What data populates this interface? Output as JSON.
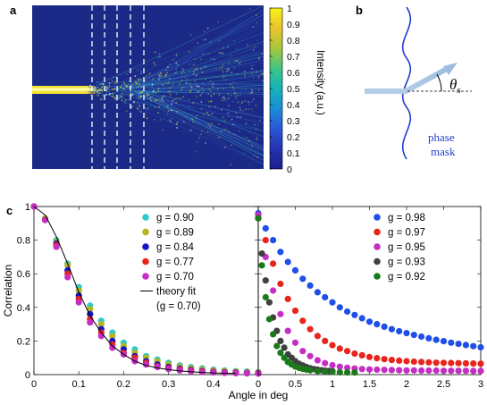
{
  "panels": {
    "a": "a",
    "b": "b",
    "c": "c"
  },
  "panel_a": {
    "colorbar": {
      "label": "Intensity (a.u.)",
      "ticks": [
        "1",
        "0.9",
        "0.8",
        "0.7",
        "0.6",
        "0.5",
        "0.4",
        "0.3",
        "0.2",
        "0.1",
        "0"
      ]
    }
  },
  "panel_b": {
    "theta": "θ",
    "theta_sub": "s",
    "mask_label_1": "phase",
    "mask_label_2": "mask"
  },
  "chart_data": [
    {
      "type": "scatter",
      "ylabel": "Correlation",
      "xlim": [
        0,
        0.5
      ],
      "ylim": [
        0,
        1
      ],
      "xticks": [
        "0",
        "0.1",
        "0.2",
        "0.3",
        "0.4"
      ],
      "yticks": [
        "0",
        "0.2",
        "0.4",
        "0.6",
        "0.8",
        "1"
      ],
      "series": [
        {
          "name": "g = 0.90",
          "color": "#2ec9c9",
          "x": [
            0,
            0.025,
            0.05,
            0.075,
            0.1,
            0.125,
            0.15,
            0.175,
            0.2,
            0.225,
            0.25,
            0.275,
            0.3,
            0.325,
            0.35,
            0.375,
            0.4,
            0.425,
            0.45,
            0.475,
            0.5
          ],
          "y": [
            1.0,
            0.93,
            0.8,
            0.66,
            0.52,
            0.41,
            0.32,
            0.25,
            0.19,
            0.15,
            0.11,
            0.09,
            0.07,
            0.055,
            0.045,
            0.037,
            0.03,
            0.025,
            0.02,
            0.018,
            0.015
          ]
        },
        {
          "name": "g = 0.89",
          "color": "#b5b521",
          "x": [
            0,
            0.025,
            0.05,
            0.075,
            0.1,
            0.125,
            0.15,
            0.175,
            0.2,
            0.225,
            0.25,
            0.275,
            0.3,
            0.325,
            0.35,
            0.375,
            0.4,
            0.425,
            0.45,
            0.475,
            0.5
          ],
          "y": [
            1.0,
            0.93,
            0.79,
            0.65,
            0.5,
            0.39,
            0.3,
            0.23,
            0.17,
            0.13,
            0.1,
            0.08,
            0.06,
            0.048,
            0.038,
            0.03,
            0.025,
            0.02,
            0.017,
            0.014,
            0.012
          ]
        },
        {
          "name": "g = 0.84",
          "color": "#1515c8",
          "x": [
            0,
            0.025,
            0.05,
            0.075,
            0.1,
            0.125,
            0.15,
            0.175,
            0.2,
            0.225,
            0.25,
            0.275,
            0.3,
            0.325,
            0.35,
            0.375,
            0.4,
            0.425,
            0.45,
            0.475,
            0.5
          ],
          "y": [
            1.0,
            0.92,
            0.78,
            0.62,
            0.47,
            0.36,
            0.27,
            0.2,
            0.15,
            0.11,
            0.08,
            0.06,
            0.045,
            0.035,
            0.027,
            0.021,
            0.017,
            0.014,
            0.012,
            0.01,
            0.009
          ]
        },
        {
          "name": "g = 0.77",
          "color": "#e8251c",
          "x": [
            0,
            0.025,
            0.05,
            0.075,
            0.1,
            0.125,
            0.15,
            0.175,
            0.2,
            0.225,
            0.25,
            0.275,
            0.3,
            0.325,
            0.35,
            0.375,
            0.4,
            0.425,
            0.45,
            0.475,
            0.5
          ],
          "y": [
            1.0,
            0.92,
            0.77,
            0.6,
            0.45,
            0.33,
            0.25,
            0.18,
            0.13,
            0.1,
            0.07,
            0.05,
            0.038,
            0.03,
            0.023,
            0.018,
            0.015,
            0.012,
            0.01,
            0.009,
            0.008
          ]
        },
        {
          "name": "g = 0.70",
          "color": "#c42ec4",
          "x": [
            0,
            0.025,
            0.05,
            0.075,
            0.1,
            0.125,
            0.15,
            0.175,
            0.2,
            0.225,
            0.25,
            0.275,
            0.3,
            0.325,
            0.35,
            0.375,
            0.4,
            0.425,
            0.45,
            0.475,
            0.5
          ],
          "y": [
            1.0,
            0.92,
            0.76,
            0.58,
            0.43,
            0.31,
            0.23,
            0.16,
            0.12,
            0.08,
            0.06,
            0.045,
            0.033,
            0.025,
            0.019,
            0.015,
            0.012,
            0.01,
            0.008,
            0.007,
            0.006
          ]
        },
        {
          "name": "theory fit",
          "subname": "(g = 0.70)",
          "color": "#000000",
          "kind": "line",
          "x": [
            0,
            0.025,
            0.05,
            0.075,
            0.1,
            0.125,
            0.15,
            0.175,
            0.2,
            0.225,
            0.25,
            0.275,
            0.3,
            0.325,
            0.35,
            0.375,
            0.4,
            0.425,
            0.45
          ],
          "y": [
            1.0,
            0.95,
            0.82,
            0.66,
            0.49,
            0.35,
            0.25,
            0.17,
            0.12,
            0.08,
            0.055,
            0.04,
            0.03,
            0.022,
            0.017,
            0.013,
            0.01,
            0.008,
            0.007
          ]
        }
      ]
    },
    {
      "type": "scatter",
      "xlabel": "Angle in deg",
      "xlim": [
        0,
        3
      ],
      "ylim": [
        0,
        1
      ],
      "xticks": [
        "0",
        "0.5",
        "1",
        "1.5",
        "2",
        "2.5",
        "3"
      ],
      "series": [
        {
          "name": "g = 0.98",
          "color": "#1f4fe8",
          "x": [
            0,
            0.1,
            0.2,
            0.3,
            0.4,
            0.5,
            0.6,
            0.7,
            0.8,
            0.9,
            1.0,
            1.1,
            1.2,
            1.3,
            1.4,
            1.5,
            1.6,
            1.7,
            1.8,
            1.9,
            2.0,
            2.1,
            2.2,
            2.3,
            2.4,
            2.5,
            2.6,
            2.7,
            2.8,
            2.9,
            3.0
          ],
          "y": [
            0.96,
            0.87,
            0.8,
            0.73,
            0.67,
            0.62,
            0.57,
            0.53,
            0.49,
            0.46,
            0.43,
            0.4,
            0.375,
            0.355,
            0.335,
            0.315,
            0.3,
            0.285,
            0.27,
            0.258,
            0.247,
            0.236,
            0.226,
            0.216,
            0.207,
            0.199,
            0.19,
            0.183,
            0.176,
            0.169,
            0.162
          ]
        },
        {
          "name": "g = 0.97",
          "color": "#e8251c",
          "x": [
            0,
            0.1,
            0.2,
            0.3,
            0.4,
            0.5,
            0.6,
            0.7,
            0.8,
            0.9,
            1.0,
            1.1,
            1.2,
            1.3,
            1.4,
            1.5,
            1.6,
            1.7,
            1.8,
            1.9,
            2.0,
            2.1,
            2.2,
            2.3,
            2.4,
            2.5,
            2.6,
            2.7,
            2.8,
            2.9,
            3.0
          ],
          "y": [
            0.95,
            0.8,
            0.66,
            0.54,
            0.45,
            0.38,
            0.32,
            0.27,
            0.23,
            0.2,
            0.175,
            0.155,
            0.14,
            0.125,
            0.115,
            0.105,
            0.098,
            0.092,
            0.087,
            0.083,
            0.08,
            0.077,
            0.075,
            0.073,
            0.071,
            0.07,
            0.069,
            0.068,
            0.067,
            0.066,
            0.065
          ]
        },
        {
          "name": "g = 0.95",
          "color": "#c42ec4",
          "x": [
            0,
            0.1,
            0.2,
            0.3,
            0.4,
            0.5,
            0.6,
            0.7,
            0.8,
            0.9,
            1.0,
            1.1,
            1.2,
            1.3,
            1.4,
            1.5,
            1.6,
            1.7,
            1.8,
            1.9,
            2.0,
            2.1,
            2.2,
            2.3,
            2.4,
            2.5,
            2.6,
            2.7,
            2.8,
            2.9,
            3.0
          ],
          "y": [
            0.95,
            0.7,
            0.5,
            0.36,
            0.26,
            0.19,
            0.14,
            0.11,
            0.085,
            0.068,
            0.056,
            0.047,
            0.041,
            0.036,
            0.033,
            0.031,
            0.029,
            0.028,
            0.027,
            0.026,
            0.025,
            0.025,
            0.024,
            0.024,
            0.024,
            0.023,
            0.023,
            0.023,
            0.023,
            0.022,
            0.022
          ]
        },
        {
          "name": "g = 0.93",
          "color": "#404040",
          "x": [
            0,
            0.05,
            0.1,
            0.15,
            0.2,
            0.25,
            0.3,
            0.35,
            0.4,
            0.45,
            0.5,
            0.55,
            0.6,
            0.65,
            0.7,
            0.75,
            0.8,
            0.85,
            0.9,
            0.95,
            1.0
          ],
          "y": [
            0.93,
            0.72,
            0.56,
            0.43,
            0.34,
            0.26,
            0.2,
            0.16,
            0.12,
            0.1,
            0.08,
            0.065,
            0.055,
            0.045,
            0.038,
            0.033,
            0.029,
            0.026,
            0.024,
            0.022,
            0.02
          ]
        },
        {
          "name": "g = 0.92",
          "color": "#1a7a1a",
          "x": [
            0,
            0.05,
            0.1,
            0.15,
            0.2,
            0.25,
            0.3,
            0.35,
            0.4,
            0.45,
            0.5,
            0.55,
            0.6,
            0.65,
            0.7,
            0.8,
            0.9,
            1.0,
            1.1,
            1.2,
            1.3
          ],
          "y": [
            0.93,
            0.65,
            0.46,
            0.33,
            0.24,
            0.17,
            0.13,
            0.1,
            0.075,
            0.06,
            0.048,
            0.04,
            0.034,
            0.03,
            0.026,
            0.021,
            0.018,
            0.016,
            0.014,
            0.013,
            0.012
          ]
        }
      ]
    }
  ]
}
